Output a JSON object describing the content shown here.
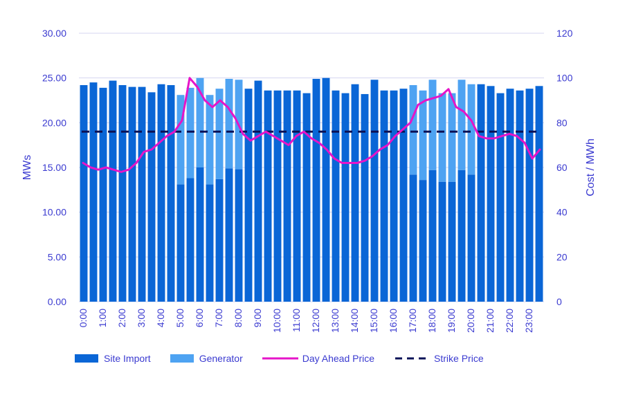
{
  "colors": {
    "site_import": "#0a66d6",
    "generator": "#4ea3f2",
    "day_ahead_price": "#e614c8",
    "strike_price": "#0b1257",
    "grid": "#d4d4f0",
    "text": "#3a3ad0"
  },
  "chart_data": {
    "type": "bar",
    "title": "",
    "xlabel": "",
    "ylabel": "MWs",
    "y2label": "Cost / MWh",
    "ylim": [
      0,
      30
    ],
    "y2lim": [
      0,
      120
    ],
    "yticks": [
      "0.00",
      "5.00",
      "10.00",
      "15.00",
      "20.00",
      "25.00",
      "30.00"
    ],
    "y2ticks": [
      "0",
      "20",
      "40",
      "60",
      "80",
      "100",
      "120"
    ],
    "xtick_labels": [
      "0:00",
      "1:00",
      "2:00",
      "3:00",
      "4:00",
      "5:00",
      "6:00",
      "7:00",
      "8:00",
      "9:00",
      "10:00",
      "11:00",
      "12:00",
      "13:00",
      "14:00",
      "15:00",
      "16:00",
      "17:00",
      "18:00",
      "19:00",
      "20:00",
      "21:00",
      "22:00",
      "23:00"
    ],
    "grid": true,
    "legend_position": "bottom",
    "stacked": true,
    "x_periods": 48,
    "series": [
      {
        "name": "Site Import",
        "kind": "bar",
        "axis": "left",
        "values": [
          24.2,
          24.5,
          23.9,
          24.7,
          24.2,
          24.0,
          24.0,
          23.4,
          24.3,
          24.2,
          13.1,
          13.8,
          15.0,
          13.1,
          13.7,
          14.9,
          14.8,
          23.8,
          24.7,
          23.6,
          23.6,
          23.6,
          23.6,
          23.3,
          24.9,
          25.0,
          23.6,
          23.3,
          24.3,
          23.2,
          24.8,
          23.6,
          23.6,
          23.8,
          14.2,
          13.6,
          14.7,
          13.4,
          13.4,
          14.7,
          14.2,
          24.3,
          24.1,
          23.3,
          23.8,
          23.6,
          23.8,
          24.1
        ]
      },
      {
        "name": "Generator",
        "kind": "bar",
        "axis": "left",
        "values": [
          0,
          0,
          0,
          0,
          0,
          0,
          0,
          0,
          0,
          0,
          10.0,
          10.1,
          10.0,
          10.0,
          10.1,
          10.0,
          10.0,
          0,
          0,
          0,
          0,
          0,
          0,
          0,
          0,
          0,
          0,
          0,
          0,
          0,
          0,
          0,
          0,
          0,
          10.0,
          10.0,
          10.1,
          9.9,
          9.9,
          10.1,
          10.1,
          0,
          0,
          0,
          0,
          0,
          0,
          0
        ]
      },
      {
        "name": "Day Ahead Price",
        "kind": "line",
        "axis": "right",
        "values": [
          62,
          60,
          59,
          60,
          59,
          58,
          59,
          62,
          67,
          68,
          71,
          74,
          76,
          81,
          100,
          96,
          90,
          87,
          90,
          87,
          82,
          75,
          72,
          74,
          76,
          74,
          72,
          70,
          74,
          76,
          73,
          71,
          68,
          64,
          62,
          62,
          62,
          63,
          65,
          68,
          70,
          74,
          77,
          80,
          88,
          90,
          91,
          92,
          95,
          87,
          85,
          81,
          74,
          73,
          73,
          74,
          75,
          74,
          71,
          64,
          68
        ]
      },
      {
        "name": "Strike Price",
        "kind": "line",
        "axis": "right",
        "values": [
          76
        ]
      }
    ]
  }
}
